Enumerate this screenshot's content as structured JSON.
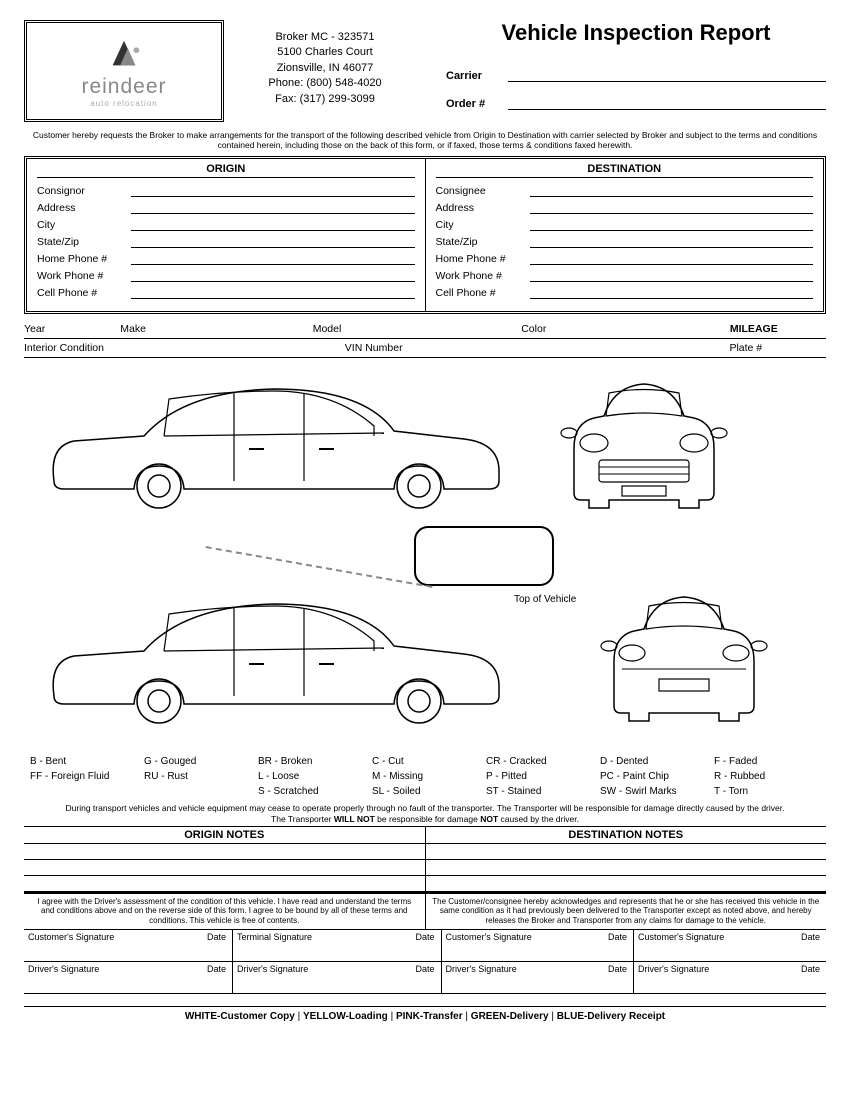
{
  "company": {
    "name": "reindeer",
    "tagline": "auto relocation",
    "broker_line": "Broker MC - 323571",
    "address1": "5100 Charles Court",
    "address2": "Zionsville, IN 46077",
    "phone": "Phone: (800) 548-4020",
    "fax": "Fax: (317) 299-3099"
  },
  "title": "Vehicle Inspection Report",
  "header_fields": {
    "carrier": "Carrier",
    "order": "Order #"
  },
  "disclaimer": "Customer hereby requests the Broker to make arrangements for the transport of the following described vehicle from Origin to Destination with carrier selected by Broker and subject to the terms and conditions contained herein, including those on the back of this form, or if faxed, those terms & conditions faxed herewith.",
  "sections": {
    "origin": "ORIGIN",
    "destination": "DESTINATION"
  },
  "address_fields": [
    "Consignor",
    "Address",
    "City",
    "State/Zip",
    "Home Phone #",
    "Work Phone #",
    "Cell Phone #"
  ],
  "address_fields_dest": [
    "Consignee",
    "Address",
    "City",
    "State/Zip",
    "Home Phone #",
    "Work Phone #",
    "Cell Phone #"
  ],
  "vehicle_row1": {
    "year": "Year",
    "make": "Make",
    "model": "Model",
    "color": "Color",
    "mileage": "MILEAGE"
  },
  "vehicle_row2": {
    "interior": "Interior Condition",
    "vin": "VIN Number",
    "plate": "Plate #"
  },
  "top_label": "Top of Vehicle",
  "legend": [
    "B - Bent",
    "G - Gouged",
    "BR - Broken",
    "C - Cut",
    "CR - Cracked",
    "D - Dented",
    "F - Faded",
    "FF - Foreign Fluid",
    "RU - Rust",
    "L - Loose",
    "M - Missing",
    "P - Pitted",
    "PC - Paint Chip",
    "R - Rubbed",
    "",
    "",
    "S - Scratched",
    "SL - Soiled",
    "ST - Stained",
    "SW - Swirl Marks",
    "T - Torn"
  ],
  "transport_note_1": "During transport vehicles and vehicle equipment may cease to operate properly through no fault of the transporter. The Transporter will be responsible for damage directly caused by the driver.",
  "transport_note_2a": "The Transporter ",
  "transport_note_2b": "WILL NOT",
  "transport_note_2c": " be responsible for damage ",
  "transport_note_2d": "NOT",
  "transport_note_2e": " caused by the driver.",
  "notes_headers": {
    "origin": "ORIGIN NOTES",
    "dest": "DESTINATION NOTES"
  },
  "agreement_left": "I agree with the Driver's assessment of the condition of this vehicle. I have read and understand the terms and conditions above and on the reverse side of this form. I agree to be bound by all of these terms and conditions. This vehicle is free of contents.",
  "agreement_right": "The Customer/consignee hereby acknowledges and represents that he or she has received this vehicle in the same condition as it had previously been delivered to the Transporter except as noted above, and hereby releases the Broker and Transporter from any claims for damage to the vehicle.",
  "signatures": {
    "cust": "Customer's Signature",
    "term": "Terminal Signature",
    "driver": "Driver's Signature",
    "date": "Date"
  },
  "footer": {
    "white": "WHITE-Customer Copy",
    "yellow": "YELLOW-Loading",
    "pink": "PINK-Transfer",
    "green": "GREEN-Delivery",
    "blue": "BLUE-Delivery Receipt",
    "sep": "     |     "
  }
}
